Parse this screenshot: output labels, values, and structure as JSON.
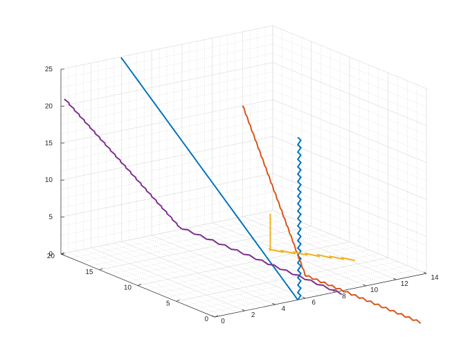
{
  "chart_data": {
    "type": "line",
    "projection": "3d",
    "grid": true,
    "minor_grid": true,
    "axes": {
      "x": {
        "range": [
          0,
          14
        ],
        "ticks": [
          0,
          2,
          4,
          6,
          8,
          10,
          12,
          14
        ],
        "tick_labels": [
          "0",
          "2",
          "4",
          "6",
          "8",
          "10",
          "12",
          "14"
        ]
      },
      "y": {
        "range": [
          0,
          20
        ],
        "ticks": [
          0,
          5,
          10,
          15,
          20
        ],
        "tick_labels": [
          "0",
          "5",
          "10",
          "15",
          "20"
        ]
      },
      "z": {
        "range": [
          0,
          25
        ],
        "ticks": [
          0,
          5,
          10,
          15,
          20,
          25
        ],
        "tick_labels": [
          "0",
          "5",
          "10",
          "15",
          "20",
          "25"
        ]
      }
    },
    "series": [
      {
        "color": "#0072BD",
        "segments": [
          {
            "start": [
              5.5,
              0,
              0
            ],
            "steps": 44,
            "step": [
              0,
              0,
              0.5
            ],
            "wobble": [
              0.4,
              0,
              0
            ]
          },
          {
            "start": [
              5.5,
              0,
              0
            ],
            "steps": 46,
            "step": [
              0,
              0.5,
              0.5
            ],
            "wobble": [
              0,
              0,
              0
            ]
          }
        ]
      },
      {
        "color": "#D95319",
        "segments": [
          {
            "start": [
              6,
              0,
              3
            ],
            "steps": 40,
            "step": [
              0.15,
              0.5,
              0.3
            ],
            "wobble": [
              0,
              0,
              0.5
            ]
          },
          {
            "start": [
              6,
              0,
              3
            ],
            "steps": 30,
            "step": [
              0,
              -0.5,
              0
            ],
            "wobble": [
              0,
              0,
              0.5
            ]
          }
        ]
      },
      {
        "color": "#7E2F8E",
        "segments": [
          {
            "start": [
              8,
              20,
              0
            ],
            "steps": 45,
            "step": [
              -0.17,
              0,
              0.46
            ],
            "wobble": [
              0,
              0.5,
              0
            ]
          },
          {
            "start": [
              8,
              20,
              0
            ],
            "steps": 26,
            "step": [
              0,
              -0.8,
              0
            ],
            "wobble": [
              0,
              0,
              0.5
            ]
          }
        ]
      },
      {
        "color": "#EDB120",
        "segments": [
          {
            "start": [
              4.8,
              2.2,
              11
            ],
            "steps": 1,
            "step": [
              0,
              0,
              -5
            ],
            "wobble": [
              0,
              0,
              0
            ]
          },
          {
            "start": [
              4.8,
              2.2,
              6
            ],
            "steps": 14,
            "step": [
              0.35,
              -0.1,
              -0.2
            ],
            "wobble": [
              -0.6,
              0.6,
              0.6
            ]
          }
        ]
      }
    ]
  }
}
